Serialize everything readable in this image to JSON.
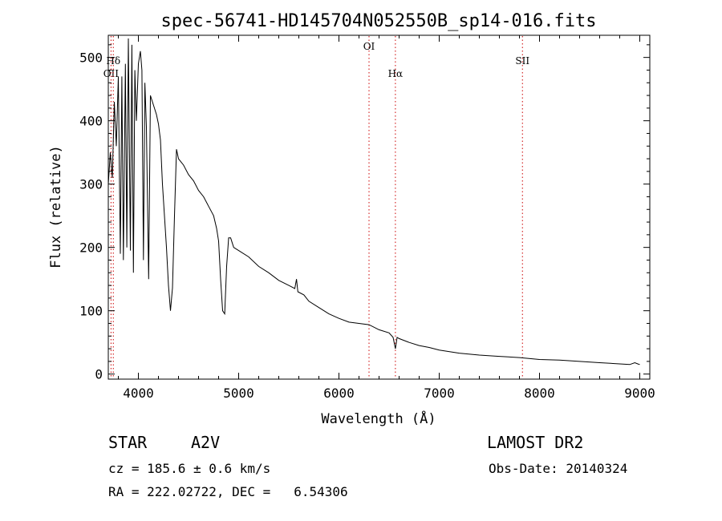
{
  "chart_data": {
    "type": "line",
    "title": "spec-56741-HD145704N052550B_sp14-016.fits",
    "xlabel": "Wavelength (Å)",
    "ylabel": "Flux (relative)",
    "xlim": [
      3700,
      9100
    ],
    "ylim": [
      -8,
      535
    ],
    "xticks": [
      4000,
      5000,
      6000,
      7000,
      8000,
      9000
    ],
    "yticks": [
      0,
      100,
      200,
      300,
      400,
      500
    ],
    "grid": false,
    "series": [
      {
        "x": [
          3700,
          3720,
          3740,
          3760,
          3780,
          3800,
          3820,
          3835,
          3850,
          3870,
          3885,
          3900,
          3920,
          3935,
          3950,
          3965,
          3980,
          4000,
          4020,
          4035,
          4050,
          4065,
          4080,
          4102,
          4120,
          4140,
          4160,
          4180,
          4200,
          4220,
          4240,
          4260,
          4280,
          4300,
          4320,
          4340,
          4360,
          4380,
          4400,
          4450,
          4500,
          4550,
          4600,
          4650,
          4700,
          4750,
          4780,
          4800,
          4820,
          4840,
          4861,
          4880,
          4900,
          4920,
          4950,
          5000,
          5100,
          5200,
          5300,
          5400,
          5500,
          5560,
          5577,
          5590,
          5650,
          5700,
          5800,
          5900,
          6000,
          6100,
          6200,
          6300,
          6400,
          6500,
          6540,
          6563,
          6580,
          6600,
          6700,
          6800,
          6900,
          7000,
          7200,
          7400,
          7600,
          7800,
          8000,
          8200,
          8400,
          8600,
          8800,
          8900,
          8950,
          8980,
          9000
        ],
        "y": [
          300,
          350,
          310,
          430,
          360,
          470,
          190,
          470,
          180,
          490,
          200,
          530,
          195,
          520,
          160,
          480,
          400,
          490,
          510,
          480,
          180,
          460,
          390,
          150,
          440,
          430,
          420,
          410,
          395,
          370,
          300,
          250,
          200,
          140,
          100,
          136,
          250,
          355,
          340,
          330,
          315,
          305,
          290,
          280,
          265,
          250,
          230,
          210,
          150,
          100,
          95,
          170,
          215,
          215,
          200,
          195,
          185,
          170,
          160,
          148,
          140,
          135,
          150,
          130,
          125,
          115,
          105,
          95,
          88,
          82,
          80,
          78,
          70,
          65,
          58,
          40,
          58,
          56,
          50,
          45,
          42,
          38,
          33,
          30,
          28,
          26,
          23,
          22,
          20,
          18,
          16,
          15,
          18,
          16,
          15
        ]
      }
    ],
    "lines": [
      {
        "label": "OII",
        "x": 3727
      },
      {
        "label": "Hδ",
        "x": 3750
      },
      {
        "label": "OI",
        "x": 6300
      },
      {
        "label": "Hα",
        "x": 6563
      },
      {
        "label": "SII",
        "x": 7830
      }
    ]
  },
  "info": {
    "star": "STAR",
    "spectral_type": "A2V",
    "survey": "LAMOST DR2",
    "cz": "cz = 185.6 ± 0.6 km/s",
    "obs_date": "Obs-Date: 20140324",
    "radec": "RA = 222.02722, DEC =   6.54306"
  },
  "colors": {
    "spectrum": "#000000",
    "line_markers": "#cc0000"
  }
}
